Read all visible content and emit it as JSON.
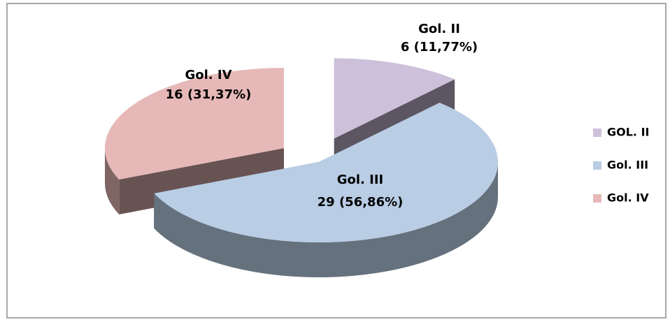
{
  "chart_data": {
    "type": "pie3d",
    "categories": [
      "GOL. II",
      "Gol. III",
      "Gol. IV"
    ],
    "label_names": [
      "Gol. II",
      "Gol. III",
      "Gol. IV"
    ],
    "values": [
      6,
      29,
      16
    ],
    "value_labels": [
      "6 (11,77%)",
      "29 (56,86%)",
      "16 (31,37%)"
    ],
    "colors": [
      "#ccc0da",
      "#b9cde5",
      "#e6b9b8"
    ],
    "exploded": [
      true,
      false,
      true
    ],
    "legend": "right"
  }
}
